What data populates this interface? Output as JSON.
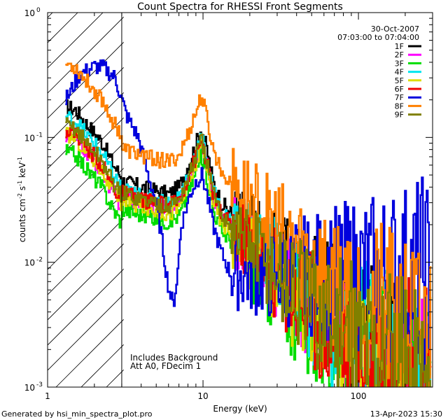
{
  "chart_data": {
    "type": "line",
    "title": "Count Spectra for RHESSI Front Segments",
    "xlabel": "Energy (keV)",
    "ylabel": "counts cm-2 s-1 keV-1",
    "ylabel_parts": {
      "base": "counts cm",
      "e1": "-2",
      "mid1": " s",
      "e2": "-1",
      "mid2": " keV",
      "e3": "-1"
    },
    "xscale": "log",
    "yscale": "log",
    "xlim": [
      1,
      300
    ],
    "ylim": [
      0.001,
      1
    ],
    "x_ticks": [
      {
        "value": 1,
        "label": "1"
      },
      {
        "value": 10,
        "label": "10"
      },
      {
        "value": 100,
        "label": "100"
      }
    ],
    "y_ticks": [
      {
        "value": 1,
        "base": "10",
        "exp": "0"
      },
      {
        "value": 0.1,
        "base": "10",
        "exp": "-1"
      },
      {
        "value": 0.01,
        "base": "10",
        "exp": "-2"
      },
      {
        "value": 0.001,
        "base": "10",
        "exp": "-3"
      }
    ],
    "date": "30-Oct-2007",
    "time_range": "07:03:00 to 07:04:00",
    "hatch_region_energy": [
      1,
      3
    ],
    "annotations": [
      "Includes Background",
      "Att A0, FDecim 1"
    ],
    "legend_position": "top-right",
    "footer_left": "Generated by hsi_min_spectra_plot.pro",
    "footer_right": "13-Apr-2023 15:30",
    "series": [
      {
        "name": "1F",
        "color": "#000000",
        "scale": 1.0,
        "offset": 0.05
      },
      {
        "name": "2F",
        "color": "#ff00ff",
        "scale": 0.75,
        "offset": -0.25
      },
      {
        "name": "3F",
        "color": "#00dd00",
        "scale": 0.6,
        "offset": -0.35
      },
      {
        "name": "4F",
        "color": "#00e5ee",
        "scale": 0.85,
        "offset": 0.0
      },
      {
        "name": "5F",
        "color": "#dddd00",
        "scale": 0.7,
        "offset": -0.15
      },
      {
        "name": "6F",
        "color": "#ee0000",
        "scale": 0.8,
        "offset": -0.2
      },
      {
        "name": "7F",
        "color": "#0000dd",
        "scale": 0.9,
        "offset": 0.0
      },
      {
        "name": "8F",
        "color": "#ff8000",
        "scale": 1.8,
        "offset": 0.3
      },
      {
        "name": "9F",
        "color": "#808000",
        "scale": 0.8,
        "offset": -0.1
      }
    ],
    "reference_spectrum": {
      "energy_keV": [
        1.3,
        1.5,
        1.8,
        2.2,
        2.6,
        3.0,
        3.5,
        4.0,
        5.0,
        6.0,
        7.0,
        8.0,
        9.0,
        9.7,
        10.5,
        11.5,
        13,
        15,
        18,
        22,
        27,
        33,
        40,
        50,
        60,
        80,
        100,
        130,
        160,
        200,
        250,
        280
      ],
      "counts": [
        0.17,
        0.16,
        0.12,
        0.09,
        0.06,
        0.045,
        0.042,
        0.04,
        0.037,
        0.035,
        0.04,
        0.06,
        0.09,
        0.12,
        0.08,
        0.045,
        0.03,
        0.025,
        0.02,
        0.016,
        0.012,
        0.009,
        0.007,
        0.0055,
        0.0045,
        0.0035,
        0.003,
        0.0025,
        0.002,
        0.0017,
        0.0014,
        0.0012
      ]
    },
    "blue_feature": {
      "energy_keV": [
        1.3,
        1.6,
        2.0,
        2.3,
        2.7,
        3.2,
        3.8,
        4.3,
        4.8,
        5.3,
        5.7,
        6.0,
        6.4,
        6.8,
        7.2,
        7.6,
        8.2,
        9.0,
        9.8,
        10.5,
        11.5,
        13.0,
        15.0
      ],
      "counts": [
        0.2,
        0.32,
        0.37,
        0.36,
        0.3,
        0.15,
        0.1,
        0.055,
        0.035,
        0.018,
        0.009,
        0.006,
        0.0045,
        0.008,
        0.02,
        0.025,
        0.035,
        0.045,
        0.05,
        0.035,
        0.02,
        0.012,
        0.008
      ]
    }
  }
}
